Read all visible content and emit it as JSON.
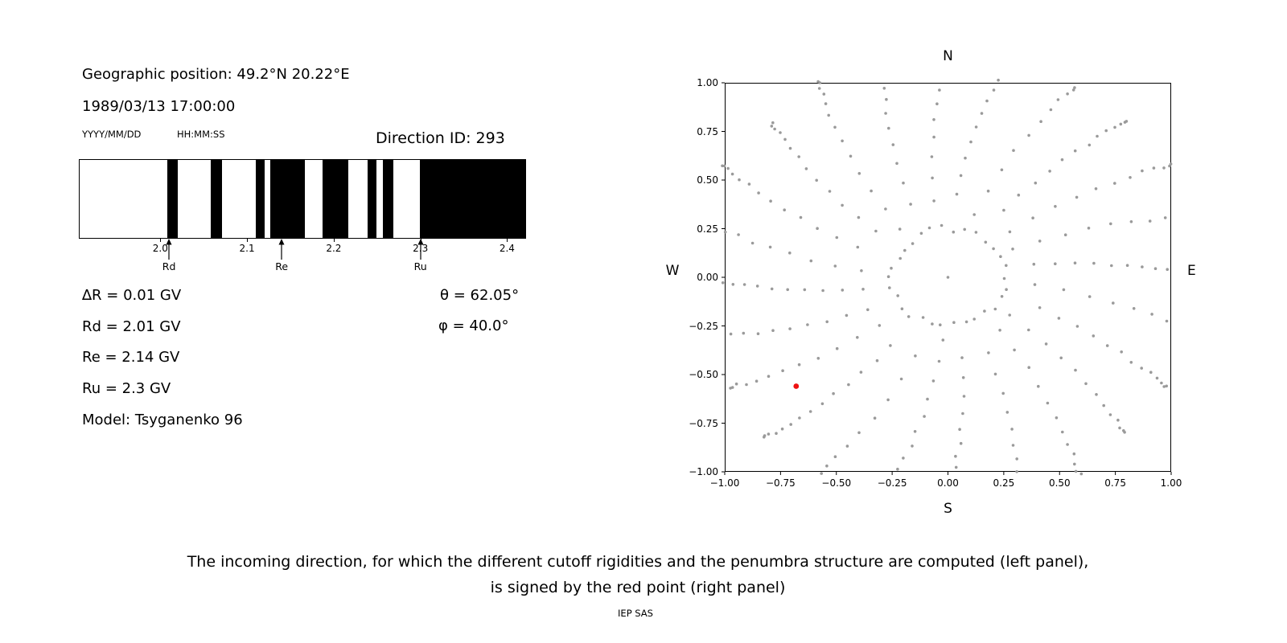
{
  "header": {
    "geo_position": "Geographic position: 49.2°N 20.22°E",
    "datetime": "1989/03/13 17:00:00",
    "date_format": "YYYY/MM/DD",
    "time_format": "HH:MM:SS",
    "direction_id": "Direction ID: 293"
  },
  "params": {
    "delta_r": "∆R = 0.01 GV",
    "rd": "Rd = 2.01 GV",
    "re": "Re = 2.14 GV",
    "ru": "Ru = 2.3 GV",
    "model": "Model: Tsyganenko 96",
    "theta": "θ = 62.05°",
    "phi": "φ = 40.0°"
  },
  "caption": {
    "line1": "The incoming direction, for which the different cutoff rigidities and the penumbra structure are computed (left panel),",
    "line2": "is signed by the red point (right panel)",
    "credit": "IEP SAS"
  },
  "chart_data": [
    {
      "type": "bar",
      "name": "penumbra-structure",
      "description": "Cosmic-ray penumbra: black bands = forbidden rigidity intervals (GV), white = allowed",
      "xlim": [
        1.906,
        2.42
      ],
      "xticks": {
        "values": [
          2.0,
          2.1,
          2.2,
          2.3,
          2.4
        ],
        "labels": [
          "2.0",
          "2.1",
          "2.2",
          "2.3",
          "2.4"
        ]
      },
      "forbidden_bands_gv": [
        [
          2.007,
          2.019
        ],
        [
          2.057,
          2.07
        ],
        [
          2.109,
          2.119
        ],
        [
          2.126,
          2.166
        ],
        [
          2.186,
          2.216
        ],
        [
          2.238,
          2.248
        ],
        [
          2.256,
          2.268
        ],
        [
          2.298,
          2.42
        ]
      ],
      "markers": [
        {
          "label": "Rd",
          "value": 2.01
        },
        {
          "label": "Re",
          "value": 2.14
        },
        {
          "label": "Ru",
          "value": 2.3
        }
      ],
      "band_color": "#000000"
    },
    {
      "type": "scatter",
      "name": "incoming-direction-map",
      "description": "Sky map of computed directions (gray radial spokes + inner ring); selected incoming direction shown as red point",
      "xlim": [
        -1,
        1
      ],
      "ylim": [
        -1,
        1
      ],
      "xticks": {
        "values": [
          -1.0,
          -0.75,
          -0.5,
          -0.25,
          0.0,
          0.25,
          0.5,
          0.75,
          1.0
        ],
        "labels": [
          "−1.00",
          "−0.75",
          "−0.50",
          "−0.25",
          "0.00",
          "0.25",
          "0.50",
          "0.75",
          "1.00"
        ]
      },
      "yticks": {
        "values": [
          1.0,
          0.75,
          0.5,
          0.25,
          0.0,
          -0.25,
          -0.5,
          -0.75,
          -1.0
        ],
        "labels": [
          "1.00",
          "0.75",
          "0.50",
          "0.25",
          "0.00",
          "−0.25",
          "−0.50",
          "−0.75",
          "−1.00"
        ]
      },
      "compass": {
        "top": "N",
        "bottom": "S",
        "left": "W",
        "right": "E"
      },
      "gray_pattern": {
        "color": "#9a9a9a",
        "dot_radius_px": 1.8,
        "center_dot": true,
        "ring": {
          "radius": 0.25,
          "count": 30
        },
        "spokes": {
          "count": 24,
          "angle_step_deg": 15,
          "r_inner": 0.38,
          "r_outer": 1.16,
          "dots_per_spoke": 13,
          "curvature_rad_per_unit": 0.22
        }
      },
      "red_point": {
        "x": -0.68,
        "y": -0.56,
        "color": "#ee1111",
        "radius_px": 3.4
      }
    }
  ]
}
